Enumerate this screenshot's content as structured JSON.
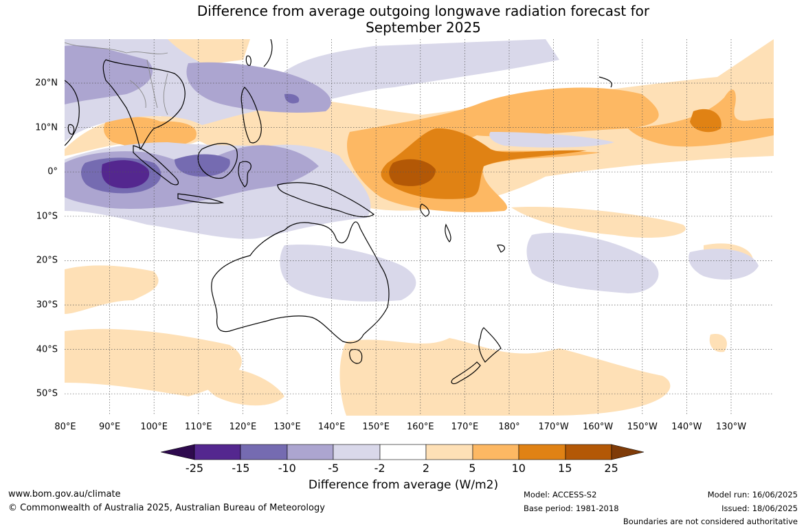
{
  "title_line1": "Difference from average outgoing longwave radiation forecast for",
  "title_line2": "September 2025",
  "lat_labels": [
    "20°N",
    "10°N",
    "0°",
    "10°S",
    "20°S",
    "30°S",
    "40°S",
    "50°S"
  ],
  "lon_labels": [
    "80°E",
    "90°E",
    "100°E",
    "110°E",
    "120°E",
    "130°E",
    "140°E",
    "150°E",
    "160°E",
    "170°E",
    "180°",
    "170°W",
    "160°W",
    "150°W",
    "140°W",
    "130°W"
  ],
  "colorbar": {
    "labels": [
      "-25",
      "-15",
      "-10",
      "-5",
      "-2",
      "2",
      "5",
      "10",
      "15",
      "25"
    ],
    "title": "Difference from average (W/m2)",
    "colors": {
      "lt_-25": "#2e0a4e",
      "-25_-15": "#54278f",
      "-15_-10": "#756bb1",
      "-10_-5": "#aca5d0",
      "-5_-2": "#d9d8ea",
      "-2_2": "#ffffff",
      "2_5": "#fee0b6",
      "5_10": "#fdb863",
      "10_15": "#e08214",
      "15_25": "#b35806",
      "gt_25": "#7f3b08"
    }
  },
  "footer": {
    "website": "www.bom.gov.au/climate",
    "copyright": "© Commonwealth of Australia 2025, Australian Bureau of Meteorology",
    "model": "Model: ACCESS-S2",
    "base_period": "Base period: 1981-2018",
    "model_run": "Model run: 16/06/2025",
    "issued": "Issued: 18/06/2025",
    "disclaimer": "Boundaries are not considered authoritative"
  }
}
